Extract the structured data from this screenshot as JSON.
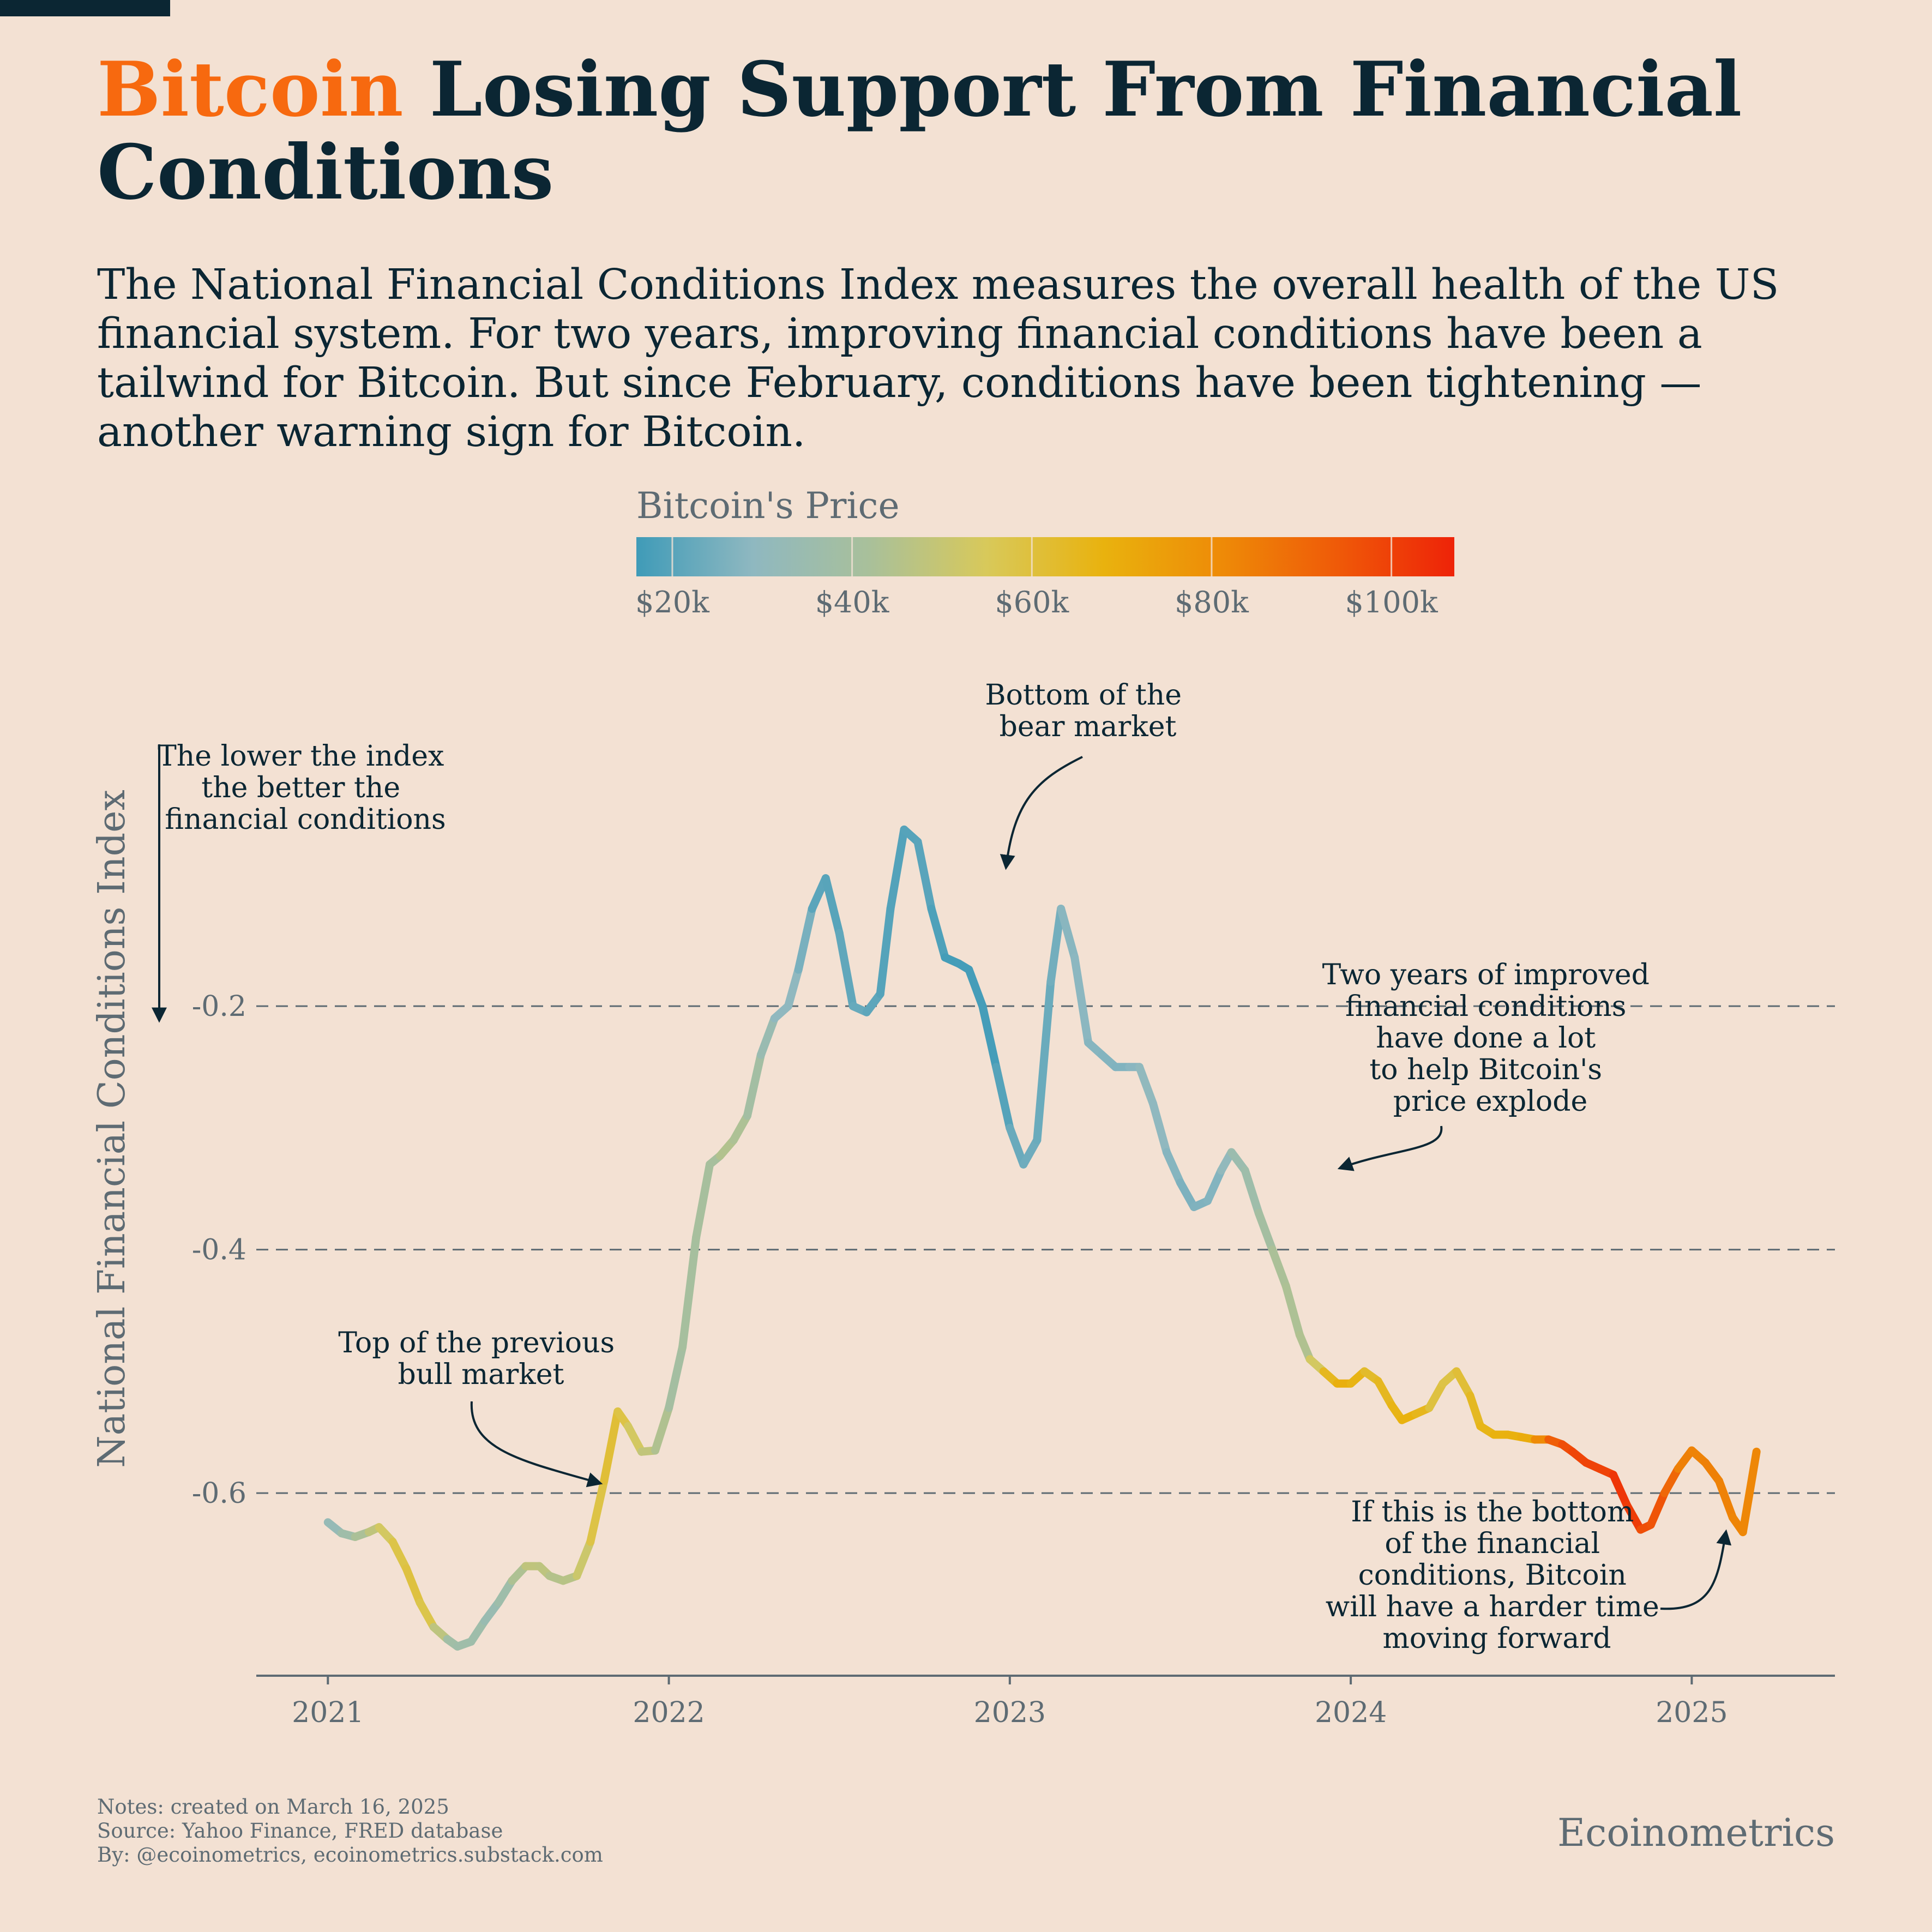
{
  "header": {
    "title_accent": "Bitcoin",
    "title_rest": " Losing Support From Financial Conditions",
    "subtitle": "The National Financial Conditions Index measures the overall health of the US financial system. For two years, improving financial conditions have been a tailwind for Bitcoin. But since February, conditions have been tightening — another warning sign for Bitcoin."
  },
  "colors": {
    "background": "#f3e1d3",
    "title": "#0b2633",
    "accent": "#f7690f",
    "muted": "#5e6b73",
    "grid": "#5e6b73"
  },
  "chart_data": {
    "type": "line",
    "ylabel": "National Financial Conditions Index",
    "y_inverted_note": "The lower the index the better the financial conditions",
    "ylim": [
      -0.75,
      0.08
    ],
    "xlim": [
      2020.79,
      2025.42
    ],
    "y_ticks": [
      -0.2,
      -0.4,
      -0.6
    ],
    "y_tick_labels": [
      "-0.2",
      "-0.4",
      "-0.6"
    ],
    "x_ticks": [
      2021,
      2022,
      2023,
      2024,
      2025
    ],
    "x_tick_labels": [
      "2021",
      "2022",
      "2023",
      "2024",
      "2025"
    ],
    "grid": "horizontal dashed",
    "colorbar": {
      "title": "Bitcoin's Price",
      "tick_labels": [
        "$20k",
        "$40k",
        "$60k",
        "$80k",
        "$100k"
      ],
      "tick_values": [
        20000,
        40000,
        60000,
        80000,
        100000
      ],
      "range": [
        16000,
        107000
      ],
      "stops": [
        "#3f9bb8",
        "#8fb8c0",
        "#a9c09a",
        "#d8c95a",
        "#e9b20e",
        "#ee8b07",
        "#ef5a08",
        "#ee2308"
      ]
    },
    "series": [
      {
        "x": [
          2021.0,
          2021.04,
          2021.08,
          2021.12,
          2021.15,
          2021.19,
          2021.23,
          2021.27,
          2021.31,
          2021.35,
          2021.38,
          2021.42,
          2021.46,
          2021.5,
          2021.54,
          2021.58,
          2021.62,
          2021.65,
          2021.69,
          2021.73,
          2021.77,
          2021.81,
          2021.85,
          2021.88,
          2021.92,
          2021.96,
          2022.0,
          2022.04,
          2022.08,
          2022.12,
          2022.15,
          2022.19,
          2022.23,
          2022.27,
          2022.31,
          2022.35,
          2022.38,
          2022.42,
          2022.46,
          2022.5,
          2022.54,
          2022.58,
          2022.62,
          2022.65,
          2022.69,
          2022.73,
          2022.77,
          2022.81,
          2022.85,
          2022.88,
          2022.92,
          2022.96,
          2023.0,
          2023.04,
          2023.08,
          2023.12,
          2023.15,
          2023.19,
          2023.23,
          2023.27,
          2023.31,
          2023.35,
          2023.38,
          2023.42,
          2023.46,
          2023.5,
          2023.54,
          2023.58,
          2023.62,
          2023.65,
          2023.69,
          2023.73,
          2023.77,
          2023.81,
          2023.85,
          2023.88,
          2023.92,
          2023.96,
          2024.0,
          2024.04,
          2024.08,
          2024.12,
          2024.15,
          2024.19,
          2024.23,
          2024.27,
          2024.31,
          2024.35,
          2024.38,
          2024.42,
          2024.46,
          2024.5,
          2024.54,
          2024.58,
          2024.62,
          2024.65,
          2024.69,
          2024.73,
          2024.77,
          2024.81,
          2024.85,
          2024.88,
          2024.92,
          2024.96,
          2025.0,
          2025.04,
          2025.08,
          2025.12,
          2025.15,
          2025.19
        ],
        "y": [
          -0.624,
          -0.633,
          -0.636,
          -0.632,
          -0.628,
          -0.64,
          -0.662,
          -0.69,
          -0.71,
          -0.72,
          -0.726,
          -0.722,
          -0.705,
          -0.69,
          -0.672,
          -0.66,
          -0.66,
          -0.668,
          -0.672,
          -0.668,
          -0.64,
          -0.59,
          -0.533,
          -0.545,
          -0.566,
          -0.565,
          -0.53,
          -0.48,
          -0.39,
          -0.33,
          -0.323,
          -0.31,
          -0.29,
          -0.24,
          -0.21,
          -0.2,
          -0.17,
          -0.12,
          -0.095,
          -0.14,
          -0.2,
          -0.205,
          -0.19,
          -0.12,
          -0.055,
          -0.065,
          -0.12,
          -0.16,
          -0.165,
          -0.17,
          -0.2,
          -0.25,
          -0.3,
          -0.33,
          -0.31,
          -0.18,
          -0.12,
          -0.16,
          -0.23,
          -0.24,
          -0.25,
          -0.25,
          -0.25,
          -0.28,
          -0.32,
          -0.345,
          -0.365,
          -0.36,
          -0.335,
          -0.32,
          -0.335,
          -0.37,
          -0.4,
          -0.43,
          -0.47,
          -0.49,
          -0.5,
          -0.51,
          -0.51,
          -0.5,
          -0.508,
          -0.528,
          -0.54,
          -0.535,
          -0.53,
          -0.51,
          -0.5,
          -0.52,
          -0.545,
          -0.552,
          -0.552,
          -0.554,
          -0.556,
          -0.556,
          -0.56,
          -0.566,
          -0.575,
          -0.58,
          -0.585,
          -0.61,
          -0.63,
          -0.626,
          -0.6,
          -0.58,
          -0.565,
          -0.575,
          -0.59,
          -0.62,
          -0.632,
          -0.566
        ],
        "price": [
          30000,
          35000,
          39000,
          46000,
          50000,
          57000,
          59000,
          60000,
          55000,
          40000,
          36000,
          38000,
          35000,
          33000,
          40000,
          47000,
          49000,
          46000,
          44000,
          48000,
          55000,
          62000,
          60000,
          57000,
          50000,
          47000,
          41000,
          38000,
          43000,
          39000,
          43000,
          46000,
          40000,
          38000,
          30000,
          29000,
          30000,
          21000,
          20000,
          20000,
          23000,
          22000,
          20000,
          19000,
          19500,
          20000,
          20500,
          16500,
          17000,
          17000,
          16800,
          17000,
          22000,
          23500,
          24000,
          22000,
          27000,
          29000,
          28000,
          27000,
          27000,
          26500,
          30000,
          30000,
          29000,
          26000,
          26000,
          27000,
          27000,
          34000,
          36000,
          37000,
          42000,
          43000,
          43000,
          45000,
          62000,
          68000,
          70000,
          64000,
          62000,
          68000,
          66000,
          70000,
          61000,
          58000,
          59000,
          63000,
          66000,
          67000,
          69000,
          68000,
          72000,
          90000,
          96000,
          98000,
          100000,
          99000,
          100000,
          105000,
          97000,
          96000,
          95000,
          86000,
          82000,
          84000,
          84000,
          83000,
          82000,
          82000
        ]
      }
    ],
    "annotations": [
      {
        "text": "Top of the previous bull market",
        "lines": [
          "Top of the previous",
          "bull market"
        ]
      },
      {
        "text": "Bottom of the bear market",
        "lines": [
          "Bottom of the",
          "bear market"
        ]
      },
      {
        "text": "Two years of improved financial conditions have done a lot to help Bitcoin's price explode",
        "lines": [
          "Two years of improved",
          "financial conditions",
          "have done a lot",
          "to help Bitcoin's",
          "price explode"
        ]
      },
      {
        "text": "If this is the bottom of the financial conditions, Bitcoin will have a harder time moving forward",
        "lines": [
          "If this is the bottom",
          "of the financial",
          "conditions, Bitcoin",
          "will have a harder time",
          "moving forward"
        ]
      }
    ],
    "y_note_lines": [
      "The lower the index",
      "the better the",
      "financial conditions"
    ]
  },
  "footer": {
    "notes": "Notes: created on March 16, 2025",
    "source": "Source: Yahoo Finance, FRED database",
    "by": "By: @ecoinometrics, ecoinometrics.substack.com",
    "brand": "Ecoinometrics"
  }
}
